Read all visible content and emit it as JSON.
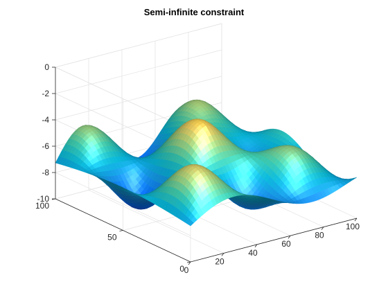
{
  "chart_data": {
    "type": "surface",
    "title": "Semi-infinite constraint",
    "xlabel": "",
    "ylabel": "",
    "zlabel": "",
    "xlim": [
      0,
      100
    ],
    "ylim": [
      0,
      100
    ],
    "zlim": [
      -10,
      0
    ],
    "x_ticks": [
      0,
      20,
      40,
      60,
      80,
      100
    ],
    "y_ticks": [
      0,
      50,
      100
    ],
    "z_ticks": [
      0,
      -2,
      -4,
      -6,
      -8,
      -10
    ],
    "grid": true,
    "colormap": "parula",
    "colormap_colors": [
      "#352a87",
      "#0363e1",
      "#1485d4",
      "#06a7c6",
      "#38b99e",
      "#92bf73",
      "#d9ba56",
      "#fcce2e",
      "#f9fb0e"
    ],
    "surface": {
      "expression": "z = sin(x/15)*cos(y/20) + 2*sin(x/10)*sin(y/12) - 5.5 - sqrt(((x-50)/40)^2 + ((y-50)/40)^2)",
      "grid_step": 2
    },
    "view": {
      "azimuth": -37.5,
      "elevation": 30
    }
  }
}
